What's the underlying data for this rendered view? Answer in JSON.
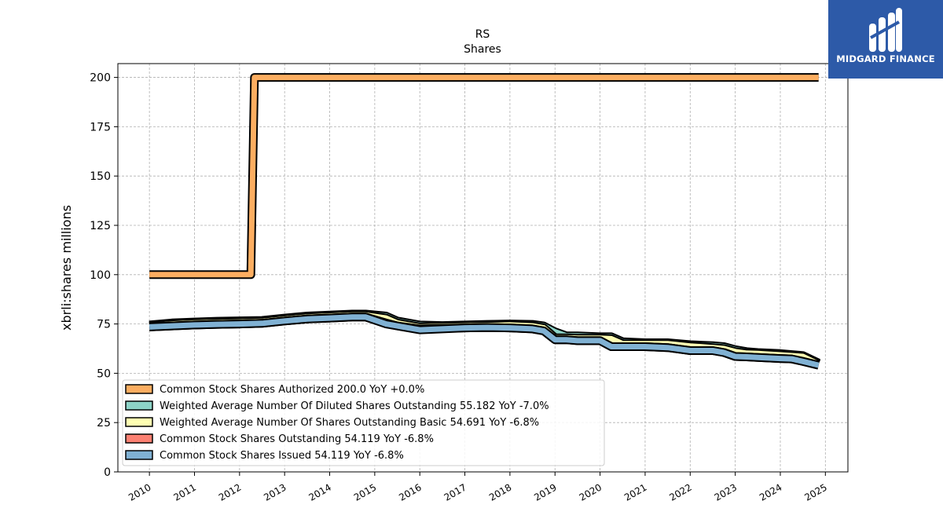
{
  "logo": {
    "name": "MIDGARD FINANCE",
    "background": "#2d5aa8"
  },
  "chart_data": {
    "type": "line",
    "title": "RS",
    "subtitle": "Shares",
    "ylabel": "xbrli:shares millions",
    "xlabel": "",
    "xlim": [
      2009.3,
      2025.5
    ],
    "ylim": [
      0,
      207
    ],
    "x_ticks": [
      "2010",
      "2011",
      "2012",
      "2013",
      "2014",
      "2015",
      "2016",
      "2017",
      "2018",
      "2019",
      "2020",
      "2021",
      "2022",
      "2023",
      "2024",
      "2025"
    ],
    "y_ticks": [
      "0",
      "25",
      "50",
      "75",
      "100",
      "125",
      "150",
      "175",
      "200"
    ],
    "grid": true,
    "legend_position": "lower-left",
    "series": [
      {
        "name": "Common Stock Shares Authorized",
        "legend": "Common Stock Shares Authorized  200.0 YoY +0.0%",
        "color": "#fdae61",
        "x": [
          2010.0,
          2012.25,
          2012.33,
          2012.4,
          2024.85
        ],
        "y": [
          100,
          100,
          200,
          200,
          200
        ]
      },
      {
        "name": "Weighted Average Number Of Diluted Shares Outstanding",
        "legend": "Weighted Average Number Of Diluted Shares Outstanding  55.182 YoY -7.0%",
        "color": "#8dd3c7",
        "x": [
          2010.0,
          2010.5,
          2011.0,
          2011.5,
          2012.0,
          2012.5,
          2013.0,
          2013.5,
          2014.0,
          2014.5,
          2014.8,
          2015.25,
          2015.5,
          2016.0,
          2016.5,
          2017.0,
          2017.5,
          2018.0,
          2018.5,
          2018.75,
          2019.0,
          2019.25,
          2019.5,
          2020.0,
          2020.25,
          2020.5,
          2021.0,
          2021.5,
          2022.0,
          2022.5,
          2022.75,
          2023.0,
          2023.25,
          2023.5,
          2024.0,
          2024.5,
          2024.85
        ],
        "y": [
          74.5,
          75.5,
          76.0,
          76.4,
          76.6,
          76.8,
          78.0,
          79.0,
          79.5,
          80.0,
          80.0,
          79.0,
          76.5,
          74.5,
          74.2,
          74.5,
          74.8,
          75.0,
          74.8,
          74.0,
          71.0,
          69.0,
          69.0,
          68.5,
          68.5,
          66.0,
          65.5,
          65.5,
          64.5,
          64.0,
          63.5,
          62.0,
          61.0,
          60.5,
          60.0,
          59.0,
          55.2
        ]
      },
      {
        "name": "Weighted Average Number Of Shares Outstanding Basic",
        "legend": "Weighted Average Number Of Shares Outstanding Basic  54.691 YoY -6.8%",
        "color": "#ffffb3",
        "x": [
          2010.0,
          2010.5,
          2011.0,
          2011.5,
          2012.0,
          2012.5,
          2013.0,
          2013.5,
          2014.0,
          2014.5,
          2014.8,
          2015.25,
          2015.5,
          2016.0,
          2016.5,
          2017.0,
          2017.5,
          2018.0,
          2018.5,
          2018.75,
          2019.0,
          2019.25,
          2019.5,
          2020.0,
          2020.25,
          2020.5,
          2021.0,
          2021.5,
          2022.0,
          2022.5,
          2022.75,
          2023.0,
          2023.25,
          2023.5,
          2024.0,
          2024.5,
          2024.85
        ],
        "y": [
          74.0,
          75.0,
          75.5,
          75.8,
          76.0,
          76.3,
          77.5,
          78.5,
          79.0,
          79.5,
          79.5,
          78.0,
          75.5,
          73.5,
          73.8,
          74.0,
          74.2,
          74.5,
          74.0,
          73.0,
          68.0,
          68.0,
          67.8,
          67.8,
          67.5,
          65.0,
          65.0,
          65.0,
          63.8,
          63.0,
          62.5,
          61.0,
          60.2,
          60.0,
          59.3,
          58.5,
          54.7
        ]
      },
      {
        "name": "Common Stock Shares Outstanding",
        "legend": "Common Stock Shares Outstanding  54.119 YoY -6.8%",
        "color": "#fb8072",
        "x": [
          2010.0,
          2010.5,
          2011.0,
          2011.5,
          2012.0,
          2012.5,
          2013.0,
          2013.5,
          2014.0,
          2014.5,
          2014.8,
          2015.25,
          2015.5,
          2016.0,
          2016.5,
          2017.0,
          2017.5,
          2018.0,
          2018.5,
          2018.75,
          2019.0,
          2019.25,
          2019.5,
          2020.0,
          2020.25,
          2020.5,
          2021.0,
          2021.5,
          2022.0,
          2022.5,
          2022.75,
          2023.0,
          2023.25,
          2023.5,
          2024.0,
          2024.25,
          2024.5,
          2024.85
        ],
        "y": [
          73.5,
          74.0,
          74.5,
          74.8,
          75.0,
          75.3,
          76.5,
          77.5,
          78.0,
          78.5,
          78.5,
          75.5,
          74.0,
          72.5,
          72.8,
          73.0,
          73.2,
          73.0,
          72.5,
          71.5,
          67.0,
          67.0,
          66.5,
          66.5,
          63.5,
          63.5,
          63.5,
          63.0,
          61.5,
          61.5,
          60.5,
          58.5,
          58.3,
          58.0,
          57.5,
          57.3,
          56.0,
          54.1
        ]
      },
      {
        "name": "Common Stock Shares Issued",
        "legend": "Common Stock Shares Issued  54.119 YoY -6.8%",
        "color": "#80b1d3",
        "x": [
          2010.0,
          2010.5,
          2011.0,
          2011.5,
          2012.0,
          2012.5,
          2013.0,
          2013.5,
          2014.0,
          2014.5,
          2014.8,
          2015.25,
          2015.5,
          2016.0,
          2016.5,
          2017.0,
          2017.5,
          2018.0,
          2018.5,
          2018.75,
          2019.0,
          2019.25,
          2019.5,
          2020.0,
          2020.25,
          2020.5,
          2021.0,
          2021.5,
          2022.0,
          2022.5,
          2022.75,
          2023.0,
          2023.25,
          2023.5,
          2024.0,
          2024.25,
          2024.5,
          2024.85
        ],
        "y": [
          73.5,
          74.0,
          74.5,
          74.8,
          75.0,
          75.3,
          76.5,
          77.5,
          78.0,
          78.5,
          78.5,
          75.0,
          74.0,
          72.0,
          72.5,
          73.0,
          73.2,
          73.0,
          72.5,
          71.5,
          67.0,
          67.0,
          66.5,
          66.5,
          63.5,
          63.5,
          63.5,
          63.0,
          61.5,
          61.5,
          60.5,
          58.5,
          58.3,
          58.0,
          57.5,
          57.3,
          56.0,
          54.1
        ]
      }
    ]
  }
}
